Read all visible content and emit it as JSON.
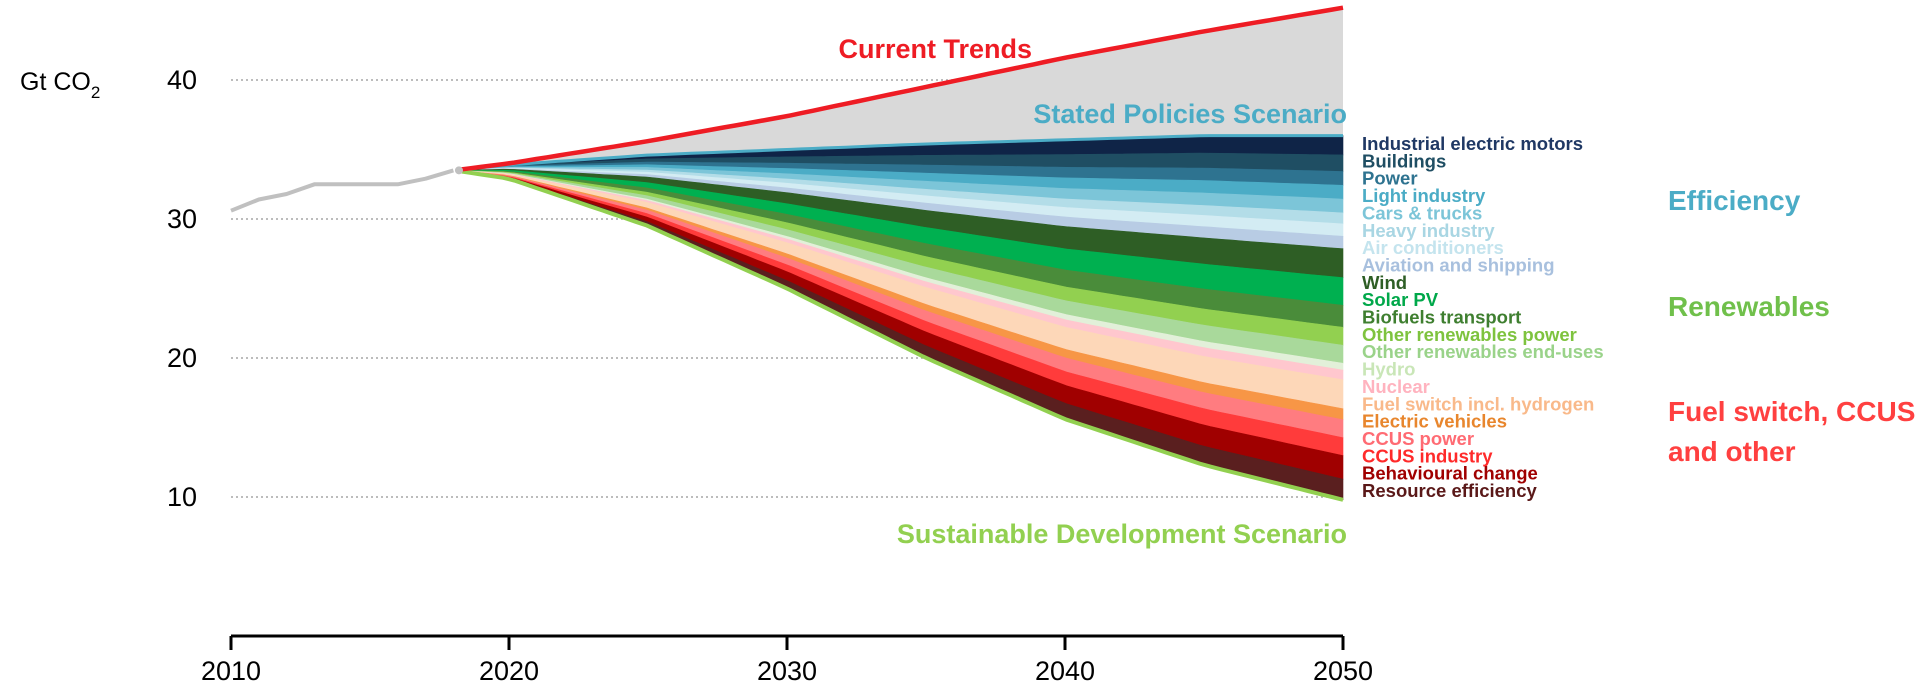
{
  "chart_data": {
    "type": "area",
    "ylabel": "Gt CO",
    "ylabel_sub": "2",
    "xlim": [
      2010,
      2050
    ],
    "ylim": [
      0,
      45
    ],
    "x_ticks": [
      "2010",
      "2020",
      "2030",
      "2040",
      "2050"
    ],
    "y_ticks": [
      "10",
      "20",
      "30",
      "40"
    ],
    "y_tick_values": [
      10,
      20,
      30,
      40
    ],
    "grid": "horizontal dotted",
    "historical": {
      "color": "#c0c0c0",
      "x": [
        2010,
        2011,
        2012,
        2013,
        2014,
        2015,
        2016,
        2017,
        2018
      ],
      "y": [
        30.6,
        31.4,
        31.8,
        32.5,
        32.5,
        32.5,
        32.5,
        32.9,
        33.5
      ]
    },
    "current_trends": {
      "name": "Current Trends",
      "color": "#ee1c24",
      "x": [
        2018,
        2020,
        2025,
        2030,
        2035,
        2040,
        2045,
        2050
      ],
      "y": [
        33.5,
        34.0,
        35.6,
        37.4,
        39.5,
        41.6,
        43.5,
        45.2
      ]
    },
    "stated_policies": {
      "name": "Stated Policies Scenario",
      "color": "#4bacc6",
      "x": [
        2018,
        2020,
        2025,
        2030,
        2035,
        2040,
        2045,
        2050
      ],
      "y": [
        33.5,
        33.9,
        34.6,
        35.0,
        35.4,
        35.7,
        36.0,
        36.0
      ]
    },
    "sustainable_development": {
      "name": "Sustainable Development Scenario",
      "color": "#92d050",
      "x": [
        2018,
        2020,
        2025,
        2030,
        2035,
        2040,
        2045,
        2050
      ],
      "y": [
        33.5,
        32.9,
        29.5,
        25.0,
        20.0,
        15.6,
        12.3,
        9.8
      ]
    },
    "wedges_at_2050": {
      "note_units": "Gt CO2 thickness of each wedge in 2050, listed from top (SPS) to bottom (SDS)",
      "series": [
        {
          "name": "Industrial electric motors",
          "value": 1.4,
          "color": "#0f2447",
          "label_color": "#1f3864"
        },
        {
          "name": "Buildings",
          "value": 1.2,
          "color": "#1f4e63",
          "label_color": "#1f4e63"
        },
        {
          "name": "Power",
          "value": 1.0,
          "color": "#2e7390",
          "label_color": "#2e7390"
        },
        {
          "name": "Light industry",
          "value": 1.0,
          "color": "#4bacc6",
          "label_color": "#4bacc6"
        },
        {
          "name": "Cars & trucks",
          "value": 1.0,
          "color": "#7cc5d8",
          "label_color": "#7cc5d8"
        },
        {
          "name": "Heavy industry",
          "value": 0.8,
          "color": "#b3dde8",
          "label_color": "#a9d6e3"
        },
        {
          "name": "Air conditioners",
          "value": 0.9,
          "color": "#d3ecf3",
          "label_color": "#c4e4ee"
        },
        {
          "name": "Aviation and shipping",
          "value": 0.9,
          "color": "#b8cce4",
          "label_color": "#a8c0de"
        },
        {
          "name": "Wind",
          "value": 2.1,
          "color": "#2e5e25",
          "label_color": "#2e5e25"
        },
        {
          "name": "Solar PV",
          "value": 2.0,
          "color": "#00b050",
          "label_color": "#00a84a"
        },
        {
          "name": "Biofuels transport",
          "value": 1.6,
          "color": "#4a8c3a",
          "label_color": "#3f7f30"
        },
        {
          "name": "Other renewables power",
          "value": 1.3,
          "color": "#92d050",
          "label_color": "#7ec33e"
        },
        {
          "name": "Other renewables end-uses",
          "value": 1.3,
          "color": "#a9d99b",
          "label_color": "#9ad38a"
        },
        {
          "name": "Hydro",
          "value": 0.5,
          "color": "#e2f0d9",
          "label_color": "#c9e6b7"
        },
        {
          "name": "Nuclear",
          "value": 0.7,
          "color": "#ffc7ce",
          "label_color": "#ffb3bf"
        },
        {
          "name": "Fuel switch incl. hydrogen",
          "value": 2.1,
          "color": "#fdd7b8",
          "label_color": "#f9b98a"
        },
        {
          "name": "Electric vehicles",
          "value": 0.8,
          "color": "#f79646",
          "label_color": "#e8862d"
        },
        {
          "name": "CCUS power",
          "value": 1.3,
          "color": "#ff7c80",
          "label_color": "#ff6b73"
        },
        {
          "name": "CCUS industry",
          "value": 1.3,
          "color": "#ff3b3b",
          "label_color": "#ff2a2a"
        },
        {
          "name": "Behavioural change",
          "value": 1.7,
          "color": "#a00000",
          "label_color": "#a00000"
        },
        {
          "name": "Resource efficiency",
          "value": 1.5,
          "color": "#5a1f1f",
          "label_color": "#5a1818"
        }
      ]
    },
    "groups": [
      {
        "name": "Efficiency",
        "color": "#4bacc6"
      },
      {
        "name": "Renewables",
        "color": "#70c04b"
      },
      {
        "name": "Fuel switch, CCUS",
        "name_line2": "and other",
        "color": "#ff4040"
      }
    ],
    "gap_fill_color": "#d9d9d9"
  }
}
